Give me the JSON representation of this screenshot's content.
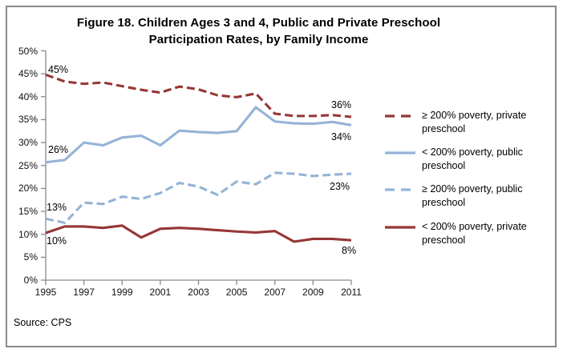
{
  "header": {
    "title_line1": "Figure 18. Children Ages 3 and 4, Public and Private Preschool",
    "title_line2": "Participation Rates, by Family Income"
  },
  "footer": {
    "source": "Source: CPS"
  },
  "colors": {
    "dark_red": "#953735",
    "light_blue": "#95B3D7",
    "axis_gray": "#8a8a8a",
    "border_gray": "#8a8a8a",
    "text_black": "#000000"
  },
  "chart_data": {
    "type": "line",
    "title": "Figure 18. Children Ages 3 and 4, Public and Private Preschool Participation Rates, by Family Income",
    "xlabel": "",
    "ylabel": "",
    "x": [
      1995,
      1996,
      1997,
      1998,
      1999,
      2000,
      2001,
      2002,
      2003,
      2004,
      2005,
      2006,
      2007,
      2008,
      2009,
      2010,
      2011
    ],
    "x_tick_labels": [
      "1995",
      "1997",
      "1999",
      "2001",
      "2003",
      "2005",
      "2007",
      "2009",
      "2011"
    ],
    "y_tick_labels": [
      "0%",
      "5%",
      "10%",
      "15%",
      "20%",
      "25%",
      "30%",
      "35%",
      "40%",
      "45%",
      "50%"
    ],
    "ylim": [
      0,
      50
    ],
    "y_tick_interval": 5,
    "grid": false,
    "legend_position": "right",
    "series": [
      {
        "name": "≥ 200% poverty, private preschool",
        "color": "#953735",
        "line_style": "dashed",
        "first_label": "45%",
        "last_label": "36%",
        "values": [
          44.8,
          43.3,
          42.8,
          43.1,
          42.3,
          41.5,
          40.9,
          42.2,
          41.6,
          40.3,
          39.9,
          40.7,
          36.3,
          35.8,
          35.8,
          36.0,
          35.6
        ]
      },
      {
        "name": "< 200% poverty, public preschool",
        "color": "#95B3D7",
        "line_style": "solid",
        "first_label": "26%",
        "last_label": "34%",
        "values": [
          25.7,
          26.2,
          30.0,
          29.4,
          31.1,
          31.5,
          29.4,
          32.6,
          32.3,
          32.1,
          32.5,
          37.7,
          34.6,
          34.2,
          34.1,
          34.5,
          33.8
        ]
      },
      {
        "name": "≥ 200% poverty, public preschool",
        "color": "#95B3D7",
        "line_style": "dashed",
        "first_label": "13%",
        "last_label": "23%",
        "values": [
          13.4,
          12.5,
          16.9,
          16.6,
          18.2,
          17.7,
          19.0,
          21.2,
          20.4,
          18.6,
          21.5,
          20.9,
          23.4,
          23.2,
          22.7,
          23.0,
          23.2
        ]
      },
      {
        "name": "< 200% poverty, private preschool",
        "color": "#953735",
        "line_style": "solid",
        "first_label": "10%",
        "last_label": "8%",
        "values": [
          10.3,
          11.7,
          11.7,
          11.4,
          11.9,
          9.3,
          11.2,
          11.4,
          11.2,
          10.9,
          10.6,
          10.4,
          10.7,
          8.4,
          9.0,
          9.0,
          8.7
        ]
      }
    ]
  }
}
